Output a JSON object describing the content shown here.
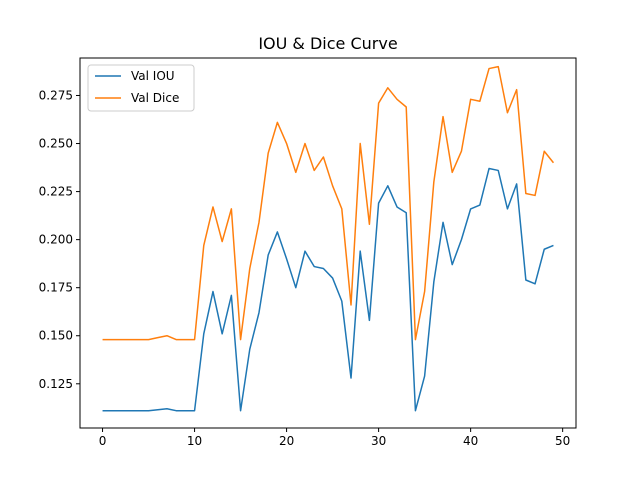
{
  "chart_data": {
    "type": "line",
    "title": "IOU & Dice Curve",
    "xlabel": "",
    "ylabel": "",
    "xlim": [
      -2.45,
      51.45
    ],
    "ylim": [
      0.102,
      0.2945
    ],
    "xticks": [
      0,
      10,
      20,
      30,
      40,
      50
    ],
    "xtick_labels": [
      "0",
      "10",
      "20",
      "30",
      "40",
      "50"
    ],
    "yticks": [
      0.125,
      0.15,
      0.175,
      0.2,
      0.225,
      0.25,
      0.275
    ],
    "ytick_labels": [
      "0.125",
      "0.150",
      "0.175",
      "0.200",
      "0.225",
      "0.250",
      "0.275"
    ],
    "grid": false,
    "legend_position": "upper-left",
    "series": [
      {
        "name": "Val IOU",
        "color": "#1f77b4",
        "x": [
          0,
          1,
          2,
          3,
          4,
          5,
          6,
          7,
          8,
          9,
          10,
          11,
          12,
          13,
          14,
          15,
          16,
          17,
          18,
          19,
          20,
          21,
          22,
          23,
          24,
          25,
          26,
          27,
          28,
          29,
          30,
          31,
          32,
          33,
          34,
          35,
          36,
          37,
          38,
          39,
          40,
          41,
          42,
          43,
          44,
          45,
          46,
          47,
          48,
          49
        ],
        "values": [
          0.111,
          0.111,
          0.111,
          0.111,
          0.111,
          0.111,
          0.1115,
          0.112,
          0.111,
          0.111,
          0.111,
          0.151,
          0.173,
          0.151,
          0.171,
          0.111,
          0.143,
          0.162,
          0.192,
          0.204,
          0.19,
          0.175,
          0.194,
          0.186,
          0.185,
          0.18,
          0.168,
          0.128,
          0.194,
          0.158,
          0.219,
          0.228,
          0.217,
          0.214,
          0.111,
          0.129,
          0.178,
          0.209,
          0.187,
          0.2,
          0.216,
          0.218,
          0.237,
          0.236,
          0.216,
          0.229,
          0.179,
          0.177,
          0.195,
          0.197
        ]
      },
      {
        "name": "Val Dice",
        "color": "#ff7f0e",
        "x": [
          0,
          1,
          2,
          3,
          4,
          5,
          6,
          7,
          8,
          9,
          10,
          11,
          12,
          13,
          14,
          15,
          16,
          17,
          18,
          19,
          20,
          21,
          22,
          23,
          24,
          25,
          26,
          27,
          28,
          29,
          30,
          31,
          32,
          33,
          34,
          35,
          36,
          37,
          38,
          39,
          40,
          41,
          42,
          43,
          44,
          45,
          46,
          47,
          48,
          49
        ],
        "values": [
          0.148,
          0.148,
          0.148,
          0.148,
          0.148,
          0.148,
          0.149,
          0.15,
          0.148,
          0.148,
          0.148,
          0.197,
          0.217,
          0.199,
          0.216,
          0.148,
          0.185,
          0.209,
          0.245,
          0.261,
          0.25,
          0.235,
          0.25,
          0.236,
          0.243,
          0.228,
          0.216,
          0.166,
          0.25,
          0.208,
          0.271,
          0.279,
          0.273,
          0.269,
          0.148,
          0.173,
          0.23,
          0.264,
          0.235,
          0.246,
          0.273,
          0.272,
          0.289,
          0.29,
          0.266,
          0.278,
          0.224,
          0.223,
          0.246,
          0.24
        ]
      }
    ]
  }
}
